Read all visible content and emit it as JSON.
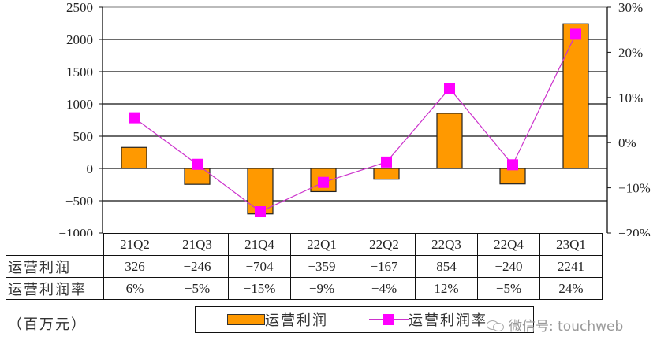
{
  "chart_data": {
    "type": "bar+line",
    "title": "",
    "categories": [
      "21Q2",
      "21Q3",
      "21Q4",
      "22Q1",
      "22Q2",
      "22Q3",
      "22Q4",
      "23Q1"
    ],
    "series": [
      {
        "name": "运营利润",
        "type": "bar",
        "axis": "left",
        "color": "#ff9900",
        "values": [
          326,
          -246,
          -704,
          -359,
          -167,
          854,
          -240,
          2241
        ]
      },
      {
        "name": "运营利润率",
        "type": "line",
        "axis": "right",
        "color": "#ff00ff",
        "values": [
          0.055,
          -0.048,
          -0.153,
          -0.088,
          -0.043,
          0.12,
          -0.049,
          0.24
        ],
        "table_values": [
          "6%",
          "-5%",
          "-15%",
          "-9%",
          "-4%",
          "12%",
          "-5%",
          "24%"
        ]
      }
    ],
    "left_axis": {
      "ticks": [
        "2500",
        "2000",
        "1500",
        "1000",
        "500",
        "0",
        "-500",
        "-1000"
      ],
      "ylim": [
        -1000,
        2500
      ]
    },
    "right_axis": {
      "ticks": [
        "30%",
        "20%",
        "10%",
        "0%",
        "-10%",
        "-20%"
      ],
      "ylim": [
        -0.2,
        0.3
      ]
    },
    "unit": "（百万元）",
    "grid": true,
    "legend_position": "bottom"
  },
  "table": {
    "row_labels": [
      "运营利润",
      "运营利润率"
    ],
    "profit": [
      "326",
      "−246",
      "−704",
      "−359",
      "−167",
      "854",
      "−240",
      "2241"
    ],
    "margin": [
      "6%",
      "−5%",
      "−15%",
      "−9%",
      "−4%",
      "12%",
      "−5%",
      "24%"
    ]
  },
  "legend": {
    "bar_label": "运营利润",
    "line_label": "运营利润率"
  },
  "watermark": {
    "text": "微信号: touchweb"
  },
  "colors": {
    "bar": "#ff9900",
    "line": "#cc33cc",
    "marker": "#ff00ff"
  }
}
